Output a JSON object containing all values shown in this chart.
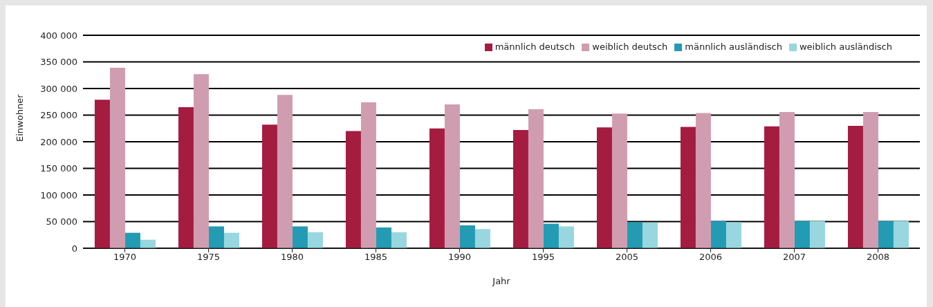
{
  "chart_data": {
    "type": "bar",
    "xlabel": "Jahr",
    "ylabel": "Einwohner",
    "categories": [
      "1970",
      "1975",
      "1980",
      "1985",
      "1990",
      "1995",
      "2005",
      "2006",
      "2007",
      "2008"
    ],
    "series": [
      {
        "name": "männlich deutsch",
        "color": "#a51c41",
        "values": [
          279000,
          265000,
          232000,
          220000,
          225000,
          222000,
          227000,
          228000,
          229000,
          230000
        ]
      },
      {
        "name": "weiblich deutsch",
        "color": "#d09db0",
        "values": [
          339000,
          327000,
          288000,
          274000,
          270000,
          261000,
          253000,
          254000,
          256000,
          256000
        ]
      },
      {
        "name": "männlich ausländisch",
        "color": "#229bb3",
        "values": [
          29000,
          41000,
          41000,
          39000,
          43000,
          46000,
          49000,
          51000,
          51000,
          51000
        ]
      },
      {
        "name": "weiblich ausländisch",
        "color": "#98d7df",
        "values": [
          16000,
          29000,
          30000,
          30000,
          36000,
          41000,
          48000,
          49000,
          51000,
          51000
        ]
      }
    ],
    "ylim": [
      0,
      400000
    ],
    "yticks": [
      {
        "value": 0,
        "label": "0"
      },
      {
        "value": 50000,
        "label": "50 000"
      },
      {
        "value": 100000,
        "label": "100 000"
      },
      {
        "value": 150000,
        "label": "150 000"
      },
      {
        "value": 200000,
        "label": "200 000"
      },
      {
        "value": 250000,
        "label": "250 000"
      },
      {
        "value": 300000,
        "label": "300 000"
      },
      {
        "value": 350000,
        "label": "350 000"
      },
      {
        "value": 400000,
        "label": "400 000"
      }
    ],
    "grid": "y",
    "legend": "top right"
  }
}
